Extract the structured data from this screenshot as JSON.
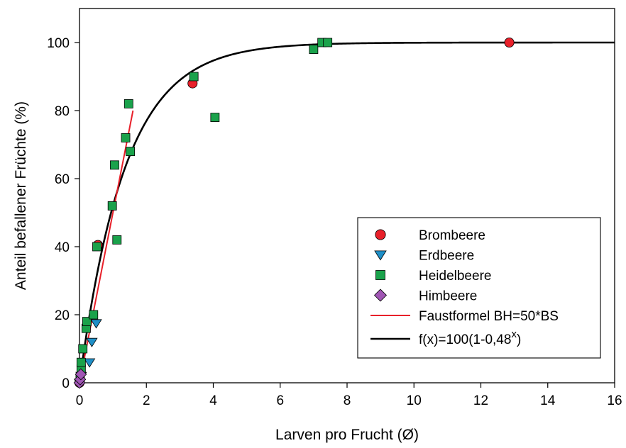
{
  "chart_data": {
    "type": "scatter",
    "title": "",
    "xlabel": "Larven pro Frucht (Ø)",
    "ylabel": "Anteil befallener Früchte (%)",
    "xlim": [
      0,
      16
    ],
    "ylim": [
      0,
      110
    ],
    "xticks": [
      "0",
      "2",
      "4",
      "6",
      "8",
      "10",
      "12",
      "14",
      "16"
    ],
    "yticks": [
      "0",
      "20",
      "40",
      "60",
      "80",
      "100"
    ],
    "grid": false,
    "legend_position": "right-center",
    "series": [
      {
        "name": "Brombeere",
        "marker": "circle",
        "color": "#e8202a",
        "points": [
          [
            0.0,
            0.0
          ],
          [
            0.55,
            40.5
          ],
          [
            3.38,
            88
          ],
          [
            12.85,
            100
          ]
        ]
      },
      {
        "name": "Erdbeere",
        "marker": "triangle-down",
        "color": "#1f8fc7",
        "points": [
          [
            0.0,
            0.0
          ],
          [
            0.05,
            2
          ],
          [
            0.3,
            6
          ],
          [
            0.37,
            12
          ],
          [
            0.5,
            17.5
          ]
        ]
      },
      {
        "name": "Heidelbeere",
        "marker": "square",
        "color": "#1aa24b",
        "points": [
          [
            0.02,
            1
          ],
          [
            0.05,
            4
          ],
          [
            0.05,
            6
          ],
          [
            0.1,
            10
          ],
          [
            0.2,
            16
          ],
          [
            0.22,
            18
          ],
          [
            0.42,
            20
          ],
          [
            0.52,
            40
          ],
          [
            0.98,
            52
          ],
          [
            1.05,
            64
          ],
          [
            1.12,
            42
          ],
          [
            1.38,
            72
          ],
          [
            1.47,
            82
          ],
          [
            1.52,
            68
          ],
          [
            3.42,
            90
          ],
          [
            4.05,
            78
          ],
          [
            7.0,
            98
          ],
          [
            7.25,
            100
          ],
          [
            7.42,
            100
          ]
        ]
      },
      {
        "name": "Himbeere",
        "marker": "diamond",
        "color": "#a056b4",
        "points": [
          [
            0.0,
            0.0
          ],
          [
            0.02,
            1
          ],
          [
            0.04,
            2.5
          ]
        ]
      }
    ],
    "lines": [
      {
        "name": "Faustformel BH=50*BS",
        "color": "#e8202a",
        "x": [
          0,
          1.6
        ],
        "y": [
          0,
          80
        ]
      },
      {
        "name": "f(x)=100(1-0,48^x)",
        "label_main": "f(x)=100(1-0,48",
        "label_sup": "x",
        "label_end": ")",
        "color": "#000000",
        "formula_base": 0.48,
        "x_range": [
          0,
          16
        ]
      }
    ]
  }
}
